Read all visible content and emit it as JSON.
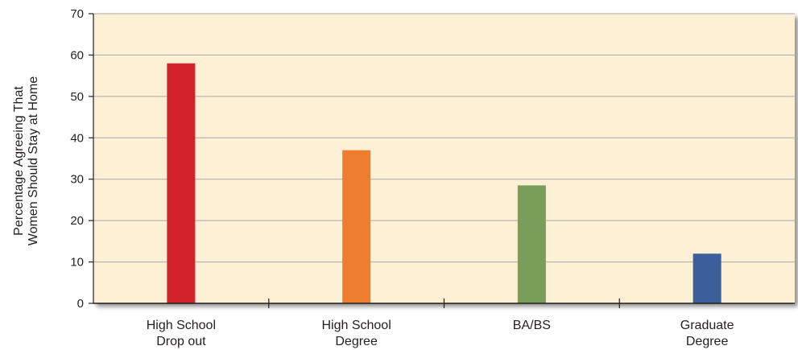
{
  "chart_data": {
    "type": "bar",
    "categories": [
      "High School\nDrop out",
      "High School\nDegree",
      "BA/BS",
      "Graduate\nDegree"
    ],
    "values": [
      58,
      37,
      28.5,
      12
    ],
    "title": "",
    "xlabel": "",
    "ylabel": "Percentage Agreeing That\nWomen Should Stay at Home",
    "ylim": [
      0,
      70
    ],
    "yticks": [
      0,
      10,
      20,
      30,
      40,
      50,
      60,
      70
    ],
    "grid": true,
    "legend": "none",
    "colors": [
      "#d2232a",
      "#ee7d2d",
      "#789e59",
      "#3a5f9a"
    ],
    "background_color": "#fdf0d5",
    "grid_color": "#a8a8a8"
  }
}
